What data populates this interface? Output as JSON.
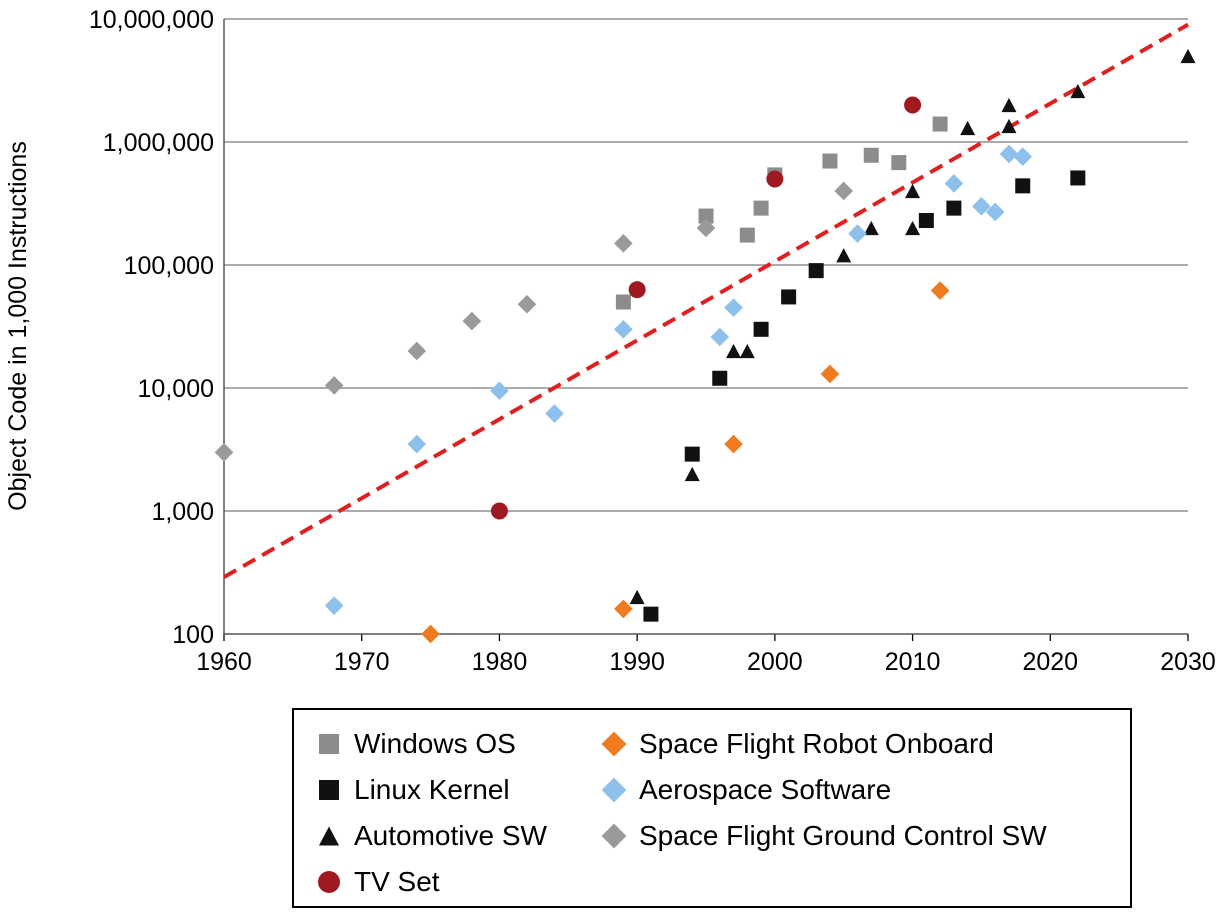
{
  "chart_data": {
    "type": "scatter",
    "title": "",
    "xlabel": "",
    "ylabel": "Object Code in 1,000 Instructions",
    "xlim": [
      1960,
      2030
    ],
    "ylim": [
      100,
      10000000
    ],
    "yscale": "log",
    "grid": "horizontal",
    "legend_position": "bottom",
    "x_ticks": [
      "1960",
      "1970",
      "1980",
      "1990",
      "2000",
      "2010",
      "2020",
      "2030"
    ],
    "y_ticks": [
      "100",
      "1,000",
      "10,000",
      "100,000",
      "1,000,000",
      "10,000,000"
    ],
    "trend_line": {
      "color": "#e02020",
      "x": [
        1960,
        2030
      ],
      "y": [
        290,
        9000000
      ]
    },
    "series": [
      {
        "name": "Windows OS",
        "marker": "square",
        "color": "#8c8c8c",
        "points": [
          [
            1989,
            50000
          ],
          [
            1995,
            250000
          ],
          [
            1998,
            175000
          ],
          [
            1999,
            290000
          ],
          [
            2000,
            540000
          ],
          [
            2004,
            700000
          ],
          [
            2007,
            780000
          ],
          [
            2009,
            680000
          ],
          [
            2012,
            1400000
          ]
        ]
      },
      {
        "name": "Linux Kernel",
        "marker": "square",
        "color": "#111111",
        "points": [
          [
            1991,
            145
          ],
          [
            1994,
            2900
          ],
          [
            1996,
            12000
          ],
          [
            1999,
            30000
          ],
          [
            2001,
            55000
          ],
          [
            2003,
            90000
          ],
          [
            2011,
            230000
          ],
          [
            2013,
            290000
          ],
          [
            2018,
            440000
          ],
          [
            2022,
            510000
          ]
        ]
      },
      {
        "name": "Automotive SW",
        "marker": "triangle",
        "color": "#111111",
        "points": [
          [
            1990,
            200
          ],
          [
            1994,
            2000
          ],
          [
            1997,
            20000
          ],
          [
            1998,
            20000
          ],
          [
            2005,
            120000
          ],
          [
            2007,
            200000
          ],
          [
            2010,
            200000
          ],
          [
            2010,
            400000
          ],
          [
            2014,
            1300000
          ],
          [
            2017,
            1350000
          ],
          [
            2017,
            2000000
          ],
          [
            2022,
            2600000
          ],
          [
            2030,
            5000000
          ]
        ]
      },
      {
        "name": "TV Set",
        "marker": "circle",
        "color": "#9e1a20",
        "points": [
          [
            1980,
            1000
          ],
          [
            1990,
            63000
          ],
          [
            2000,
            500000
          ],
          [
            2010,
            2000000
          ]
        ]
      },
      {
        "name": "Space Flight Robot Onboard",
        "marker": "diamond",
        "color": "#f07a1e",
        "points": [
          [
            1975,
            100
          ],
          [
            1989,
            160
          ],
          [
            1997,
            3500
          ],
          [
            2004,
            13000
          ],
          [
            2012,
            62000
          ]
        ]
      },
      {
        "name": "Aerospace Software",
        "marker": "diamond",
        "color": "#8ec0ec",
        "points": [
          [
            1968,
            170
          ],
          [
            1974,
            3500
          ],
          [
            1980,
            9500
          ],
          [
            1984,
            6200
          ],
          [
            1989,
            30000
          ],
          [
            1996,
            26000
          ],
          [
            1997,
            45000
          ],
          [
            2006,
            180000
          ],
          [
            2013,
            460000
          ],
          [
            2015,
            300000
          ],
          [
            2016,
            270000
          ],
          [
            2017,
            800000
          ],
          [
            2018,
            760000
          ]
        ]
      },
      {
        "name": "Space Flight Ground Control SW",
        "marker": "diamond",
        "color": "#9a9a9a",
        "points": [
          [
            1960,
            3000
          ],
          [
            1968,
            10500
          ],
          [
            1974,
            20000
          ],
          [
            1978,
            35000
          ],
          [
            1982,
            48000
          ],
          [
            1989,
            150000
          ],
          [
            1995,
            200000
          ],
          [
            2005,
            400000
          ]
        ]
      }
    ]
  }
}
